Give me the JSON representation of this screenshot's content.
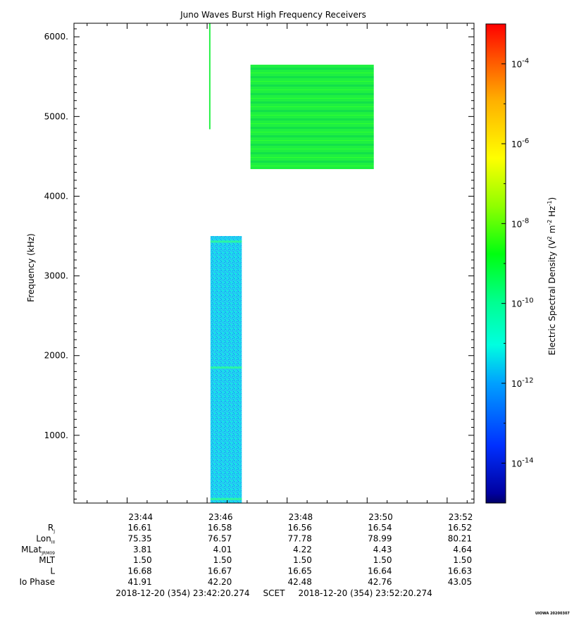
{
  "chart_data": {
    "type": "heatmap",
    "title": "Juno Waves Burst High Frequency Receivers",
    "xlabel": "",
    "ylabel": "Frequency (kHz)",
    "x_tick_labels": [
      "23:44",
      "23:46",
      "23:48",
      "23:50",
      "23:52"
    ],
    "x_ticks_minutes_after_23_42_20": [
      1.667,
      3.667,
      5.667,
      7.667,
      9.667
    ],
    "xlim_minutes": [
      0,
      10
    ],
    "y_tick_labels": [
      "1000.",
      "2000.",
      "3000.",
      "4000.",
      "5000.",
      "6000."
    ],
    "y_ticks": [
      1000,
      2000,
      3000,
      4000,
      5000,
      6000
    ],
    "ylim": [
      150,
      6170
    ],
    "grid": false,
    "regions": [
      {
        "name": "",
        "t_start": "23:45:45",
        "t_end": "23:46:32",
        "f_min": 150,
        "f_max": 3500,
        "log10_density": -11.6,
        "note_level": "cyan-blue noisy"
      },
      {
        "name": "",
        "t_start": "23:46:45",
        "t_end": "23:49:50",
        "f_min": 4340,
        "f_max": 5650,
        "log10_density": -9.3,
        "note_level": "green with horizontal striping"
      },
      {
        "name": "",
        "t_start": "23:45:43",
        "t_end": "23:45:45",
        "f_min": 4840,
        "f_max": 6170,
        "log10_density": -9.3,
        "note_level": "thin green line"
      }
    ],
    "colorbar": {
      "label_prefix": "Electric Spectral Density (V",
      "label_sup1": "2",
      "label_mid1": " m",
      "label_sup2": "-2",
      "label_mid2": " Hz",
      "label_sup3": "-1",
      "label_suffix": ")",
      "scale": "log",
      "range_log10": [
        -15,
        -3
      ],
      "tick_exponents": [
        "-4",
        "-6",
        "-8",
        "-10",
        "-12",
        "-14"
      ],
      "tick_values_log10": [
        -4,
        -6,
        -8,
        -10,
        -12,
        -14
      ],
      "tick_base": "10"
    },
    "ephemeris": {
      "rows": [
        {
          "label": "R",
          "sub": "J",
          "values": [
            "16.61",
            "16.58",
            "16.56",
            "16.54",
            "16.52"
          ]
        },
        {
          "label": "Lon",
          "sub": "III",
          "values": [
            "75.35",
            "76.57",
            "77.78",
            "78.99",
            "80.21"
          ]
        },
        {
          "label": "MLat",
          "sub": "JRM09",
          "values": [
            "3.81",
            "4.01",
            "4.22",
            "4.43",
            "4.64"
          ]
        },
        {
          "label": "MLT",
          "sub": "",
          "values": [
            "1.50",
            "1.50",
            "1.50",
            "1.50",
            "1.50"
          ]
        },
        {
          "label": "L",
          "sub": "",
          "values": [
            "16.68",
            "16.67",
            "16.65",
            "16.64",
            "16.63"
          ]
        },
        {
          "label": "Io Phase",
          "sub": "",
          "values": [
            "41.91",
            "42.20",
            "42.48",
            "42.76",
            "43.05"
          ]
        }
      ]
    },
    "time_range": "2018-12-20 (354) 23:42:20.274     SCET     2018-12-20 (354) 23:52:20.274",
    "watermark": "UIOWA 20200307"
  }
}
